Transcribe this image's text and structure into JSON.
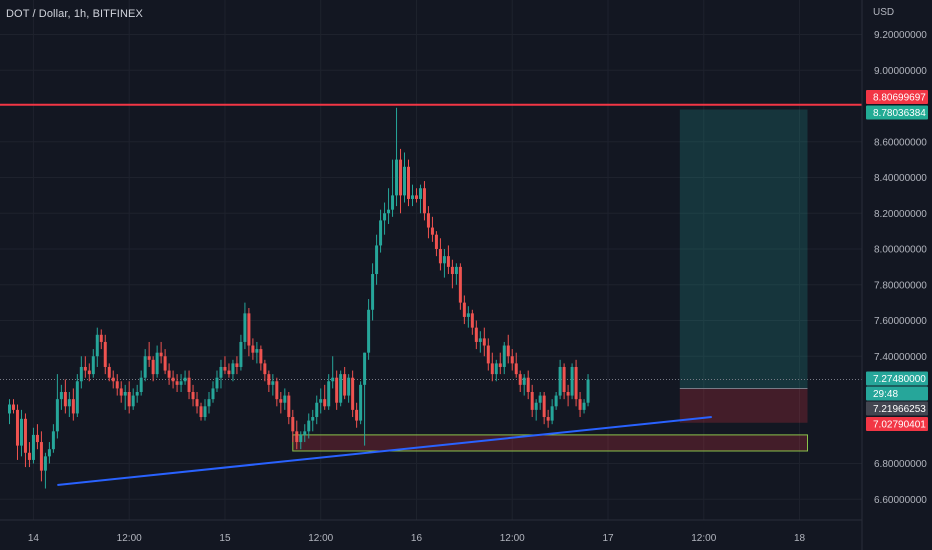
{
  "header": {
    "symbol_title": "DOT / Dollar, 1h, BITFINEX",
    "currency": "USD"
  },
  "colors": {
    "background": "#131722",
    "up": "#26a69a",
    "down": "#ef5350",
    "resistance": "#f23645",
    "trendline": "#2962ff",
    "zone_border": "#8bc34a"
  },
  "chart_data": {
    "type": "candlestick",
    "x_tick_labels": [
      "14",
      "12:00",
      "15",
      "12:00",
      "16",
      "12:00",
      "17",
      "12:00",
      "18"
    ],
    "y_tick_labels": [
      "9.20000000",
      "9.00000000",
      "8.60000000",
      "8.40000000",
      "8.20000000",
      "8.00000000",
      "7.80000000",
      "7.60000000",
      "7.40000000",
      "6.80000000",
      "6.60000000"
    ],
    "ylim": [
      6.5,
      9.3
    ],
    "price_labels": [
      {
        "text": "8.80699697",
        "value": 8.80699697,
        "kind": "resistance"
      },
      {
        "text": "8.78036384",
        "value": 8.78036384,
        "kind": "target"
      },
      {
        "text": "7.27480000",
        "value": 7.2748,
        "kind": "last"
      },
      {
        "text": "29:48",
        "value": 7.235,
        "kind": "countdown"
      },
      {
        "text": "7.21966253",
        "value": 7.21966253,
        "kind": "entry"
      },
      {
        "text": "7.02790401",
        "value": 7.02790401,
        "kind": "stop"
      }
    ],
    "resistance_line": 8.80699697,
    "long_position": {
      "entry": 7.21966253,
      "target": 8.78036384,
      "stop": 7.02790401,
      "start_bar": 168,
      "end_bar": 200
    },
    "support_zone": {
      "top": 6.96,
      "bottom": 6.87,
      "start_bar": 71,
      "end_bar": 200
    },
    "trendline": {
      "from": [
        12,
        6.68
      ],
      "to": [
        176,
        7.06
      ]
    },
    "candles": [
      [
        7.08,
        7.16,
        7.02,
        7.13
      ],
      [
        7.13,
        7.16,
        7.08,
        7.1
      ],
      [
        7.1,
        7.13,
        6.82,
        6.9
      ],
      [
        6.9,
        7.1,
        6.84,
        7.05
      ],
      [
        7.05,
        7.08,
        6.78,
        6.86
      ],
      [
        6.86,
        6.92,
        6.78,
        6.82
      ],
      [
        6.82,
        7.0,
        6.8,
        6.96
      ],
      [
        6.96,
        7.02,
        6.88,
        6.92
      ],
      [
        6.92,
        6.98,
        6.7,
        6.76
      ],
      [
        6.76,
        6.86,
        6.66,
        6.84
      ],
      [
        6.84,
        6.92,
        6.8,
        6.88
      ],
      [
        6.88,
        7.02,
        6.86,
        6.98
      ],
      [
        6.98,
        7.3,
        6.94,
        7.16
      ],
      [
        7.16,
        7.24,
        7.1,
        7.2
      ],
      [
        7.2,
        7.27,
        7.08,
        7.12
      ],
      [
        7.12,
        7.2,
        7.06,
        7.16
      ],
      [
        7.16,
        7.22,
        7.04,
        7.08
      ],
      [
        7.08,
        7.3,
        7.06,
        7.26
      ],
      [
        7.26,
        7.4,
        7.22,
        7.34
      ],
      [
        7.34,
        7.4,
        7.28,
        7.32
      ],
      [
        7.32,
        7.36,
        7.26,
        7.3
      ],
      [
        7.3,
        7.44,
        7.28,
        7.4
      ],
      [
        7.4,
        7.56,
        7.34,
        7.52
      ],
      [
        7.52,
        7.55,
        7.44,
        7.48
      ],
      [
        7.48,
        7.52,
        7.3,
        7.34
      ],
      [
        7.34,
        7.36,
        7.26,
        7.28
      ],
      [
        7.28,
        7.32,
        7.22,
        7.26
      ],
      [
        7.26,
        7.3,
        7.18,
        7.22
      ],
      [
        7.22,
        7.26,
        7.14,
        7.18
      ],
      [
        7.18,
        7.24,
        7.1,
        7.2
      ],
      [
        7.2,
        7.26,
        7.08,
        7.12
      ],
      [
        7.12,
        7.22,
        7.1,
        7.18
      ],
      [
        7.18,
        7.24,
        7.14,
        7.2
      ],
      [
        7.2,
        7.32,
        7.18,
        7.28
      ],
      [
        7.28,
        7.44,
        7.26,
        7.4
      ],
      [
        7.4,
        7.48,
        7.34,
        7.38
      ],
      [
        7.38,
        7.4,
        7.26,
        7.3
      ],
      [
        7.3,
        7.46,
        7.28,
        7.42
      ],
      [
        7.42,
        7.48,
        7.36,
        7.4
      ],
      [
        7.4,
        7.44,
        7.3,
        7.32
      ],
      [
        7.32,
        7.36,
        7.24,
        7.28
      ],
      [
        7.28,
        7.32,
        7.22,
        7.26
      ],
      [
        7.26,
        7.3,
        7.2,
        7.24
      ],
      [
        7.24,
        7.3,
        7.2,
        7.26
      ],
      [
        7.26,
        7.32,
        7.24,
        7.28
      ],
      [
        7.28,
        7.32,
        7.16,
        7.2
      ],
      [
        7.2,
        7.24,
        7.12,
        7.16
      ],
      [
        7.16,
        7.2,
        7.08,
        7.12
      ],
      [
        7.12,
        7.14,
        7.04,
        7.06
      ],
      [
        7.06,
        7.16,
        7.04,
        7.12
      ],
      [
        7.12,
        7.2,
        7.08,
        7.16
      ],
      [
        7.16,
        7.26,
        7.14,
        7.22
      ],
      [
        7.22,
        7.32,
        7.2,
        7.28
      ],
      [
        7.28,
        7.38,
        7.22,
        7.34
      ],
      [
        7.34,
        7.4,
        7.3,
        7.32
      ],
      [
        7.32,
        7.36,
        7.28,
        7.3
      ],
      [
        7.3,
        7.38,
        7.26,
        7.36
      ],
      [
        7.36,
        7.4,
        7.3,
        7.34
      ],
      [
        7.34,
        7.52,
        7.32,
        7.48
      ],
      [
        7.48,
        7.7,
        7.44,
        7.64
      ],
      [
        7.64,
        7.67,
        7.4,
        7.46
      ],
      [
        7.46,
        7.5,
        7.38,
        7.42
      ],
      [
        7.42,
        7.48,
        7.36,
        7.44
      ],
      [
        7.44,
        7.46,
        7.32,
        7.36
      ],
      [
        7.36,
        7.38,
        7.26,
        7.3
      ],
      [
        7.3,
        7.32,
        7.2,
        7.24
      ],
      [
        7.24,
        7.3,
        7.18,
        7.26
      ],
      [
        7.26,
        7.28,
        7.12,
        7.16
      ],
      [
        7.16,
        7.2,
        7.08,
        7.14
      ],
      [
        7.14,
        7.22,
        7.1,
        7.18
      ],
      [
        7.18,
        7.2,
        7.02,
        7.06
      ],
      [
        7.06,
        7.1,
        6.92,
        6.98
      ],
      [
        6.98,
        7.04,
        6.88,
        6.92
      ],
      [
        6.92,
        6.98,
        6.88,
        6.96
      ],
      [
        6.96,
        7.02,
        6.92,
        6.98
      ],
      [
        6.98,
        7.08,
        6.94,
        7.04
      ],
      [
        7.04,
        7.1,
        6.98,
        7.06
      ],
      [
        7.06,
        7.18,
        7.02,
        7.14
      ],
      [
        7.14,
        7.22,
        7.08,
        7.16
      ],
      [
        7.16,
        7.24,
        7.1,
        7.12
      ],
      [
        7.12,
        7.3,
        7.1,
        7.26
      ],
      [
        7.26,
        7.4,
        7.22,
        7.28
      ],
      [
        7.28,
        7.32,
        7.1,
        7.14
      ],
      [
        7.14,
        7.32,
        7.12,
        7.3
      ],
      [
        7.3,
        7.34,
        7.16,
        7.18
      ],
      [
        7.18,
        7.3,
        7.14,
        7.28
      ],
      [
        7.28,
        7.32,
        7.06,
        7.1
      ],
      [
        7.1,
        7.14,
        7.0,
        7.04
      ],
      [
        7.04,
        7.26,
        7.02,
        7.24
      ],
      [
        7.24,
        7.42,
        6.9,
        7.42
      ],
      [
        7.42,
        7.72,
        7.38,
        7.66
      ],
      [
        7.66,
        7.92,
        7.6,
        7.86
      ],
      [
        7.86,
        8.08,
        7.8,
        8.02
      ],
      [
        8.02,
        8.22,
        7.98,
        8.16
      ],
      [
        8.16,
        8.26,
        8.08,
        8.2
      ],
      [
        8.2,
        8.34,
        8.14,
        8.22
      ],
      [
        8.22,
        8.5,
        8.18,
        8.3
      ],
      [
        8.3,
        8.79,
        8.24,
        8.5
      ],
      [
        8.5,
        8.56,
        8.2,
        8.3
      ],
      [
        8.3,
        8.54,
        8.26,
        8.46
      ],
      [
        8.46,
        8.5,
        8.24,
        8.28
      ],
      [
        8.28,
        8.36,
        8.24,
        8.3
      ],
      [
        8.3,
        8.34,
        8.26,
        8.28
      ],
      [
        8.28,
        8.36,
        8.2,
        8.34
      ],
      [
        8.34,
        8.38,
        8.16,
        8.2
      ],
      [
        8.2,
        8.24,
        8.06,
        8.12
      ],
      [
        8.12,
        8.18,
        8.04,
        8.08
      ],
      [
        8.08,
        8.1,
        7.96,
        8.0
      ],
      [
        8.0,
        8.06,
        7.88,
        7.92
      ],
      [
        7.92,
        8.0,
        7.84,
        7.96
      ],
      [
        7.96,
        8.02,
        7.86,
        7.9
      ],
      [
        7.9,
        7.94,
        7.78,
        7.86
      ],
      [
        7.86,
        7.92,
        7.8,
        7.9
      ],
      [
        7.9,
        7.92,
        7.66,
        7.7
      ],
      [
        7.7,
        7.74,
        7.58,
        7.62
      ],
      [
        7.62,
        7.68,
        7.56,
        7.64
      ],
      [
        7.64,
        7.66,
        7.52,
        7.56
      ],
      [
        7.56,
        7.6,
        7.44,
        7.48
      ],
      [
        7.48,
        7.54,
        7.42,
        7.5
      ],
      [
        7.5,
        7.56,
        7.4,
        7.46
      ],
      [
        7.46,
        7.5,
        7.32,
        7.36
      ],
      [
        7.36,
        7.42,
        7.26,
        7.3
      ],
      [
        7.3,
        7.38,
        7.26,
        7.36
      ],
      [
        7.36,
        7.42,
        7.3,
        7.34
      ],
      [
        7.34,
        7.48,
        7.3,
        7.46
      ],
      [
        7.46,
        7.52,
        7.36,
        7.4
      ],
      [
        7.4,
        7.44,
        7.32,
        7.36
      ],
      [
        7.36,
        7.42,
        7.28,
        7.3
      ],
      [
        7.3,
        7.32,
        7.2,
        7.24
      ],
      [
        7.24,
        7.3,
        7.18,
        7.28
      ],
      [
        7.28,
        7.32,
        7.16,
        7.2
      ],
      [
        7.2,
        7.24,
        7.06,
        7.1
      ],
      [
        7.1,
        7.16,
        7.04,
        7.14
      ],
      [
        7.14,
        7.2,
        7.1,
        7.18
      ],
      [
        7.18,
        7.2,
        7.02,
        7.06
      ],
      [
        7.06,
        7.1,
        7.0,
        7.04
      ],
      [
        7.04,
        7.16,
        7.02,
        7.12
      ],
      [
        7.12,
        7.2,
        7.1,
        7.18
      ],
      [
        7.18,
        7.38,
        7.16,
        7.34
      ],
      [
        7.34,
        7.36,
        7.16,
        7.2
      ],
      [
        7.2,
        7.24,
        7.12,
        7.18
      ],
      [
        7.18,
        7.36,
        7.16,
        7.34
      ],
      [
        7.34,
        7.38,
        7.12,
        7.16
      ],
      [
        7.16,
        7.2,
        7.06,
        7.1
      ],
      [
        7.1,
        7.16,
        7.08,
        7.14
      ],
      [
        7.14,
        7.3,
        7.12,
        7.27
      ]
    ]
  }
}
